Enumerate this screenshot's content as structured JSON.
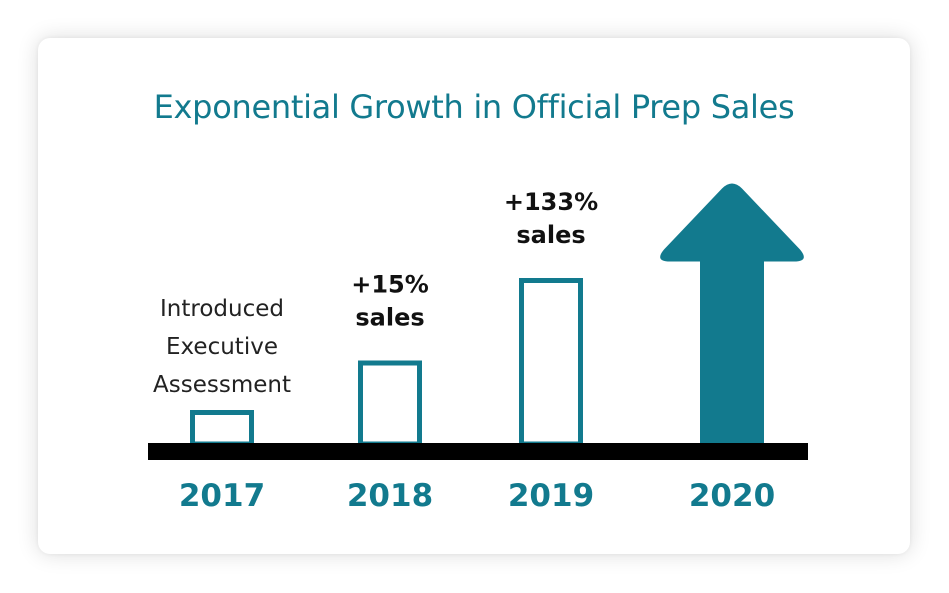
{
  "colors": {
    "accent": "#127a8e",
    "axis": "#000000",
    "card_bg": "#ffffff"
  },
  "chart_data": {
    "type": "bar",
    "title": "Exponential Growth in Official Prep Sales",
    "categories": [
      "2017",
      "2018",
      "2019",
      "2020"
    ],
    "series": [
      {
        "values": [
          1,
          2.5,
          5,
          7.5
        ]
      }
    ],
    "ylim": [
      0,
      8
    ],
    "grid": false,
    "legend": "none",
    "final_category_shape": "up-arrow",
    "annotations": [
      {
        "category": "2017",
        "lines": [
          "Introduced",
          "Executive",
          "Assessment"
        ],
        "weight": "normal"
      },
      {
        "category": "2018",
        "lines": [
          "+15%",
          "sales"
        ],
        "weight": "bold"
      },
      {
        "category": "2019",
        "lines": [
          "+133%",
          "sales"
        ],
        "weight": "bold"
      }
    ]
  }
}
